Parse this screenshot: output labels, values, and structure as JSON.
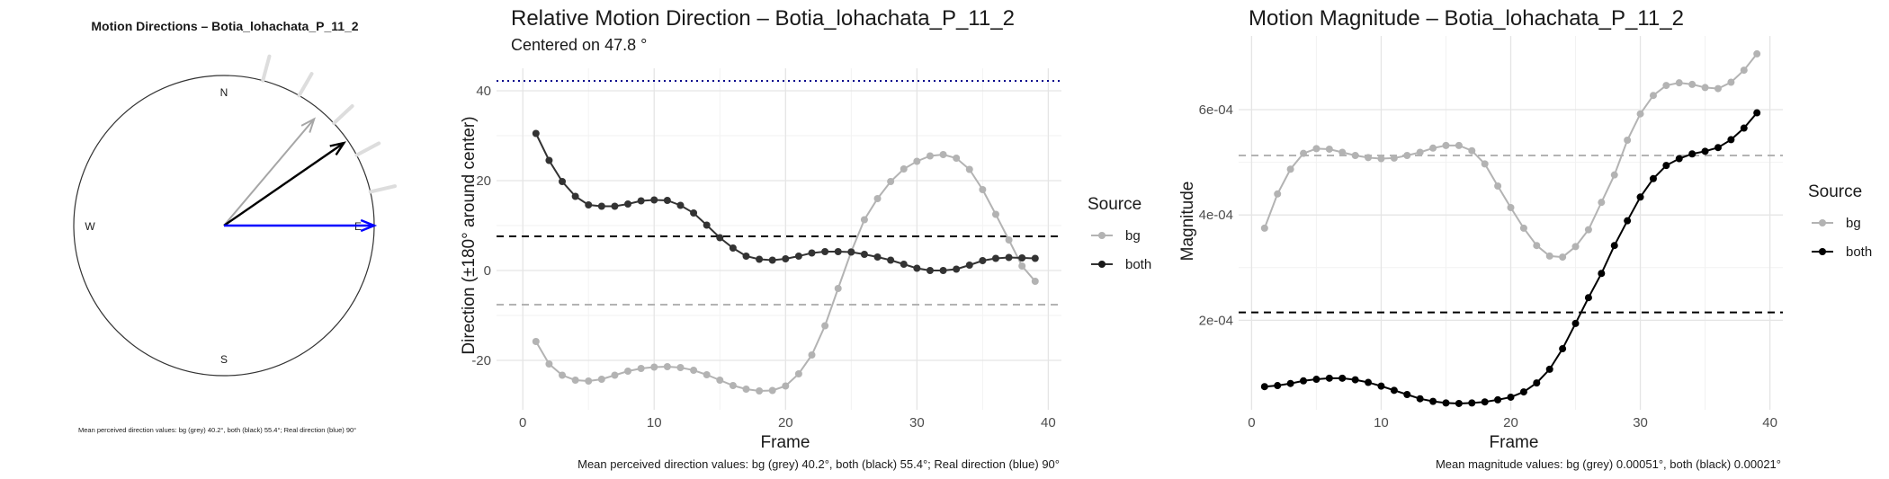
{
  "chart_data": [
    {
      "type": "polar-arrows",
      "title": "Motion Directions – Botia_lohachata_P_11_2",
      "compass": [
        "N",
        "E",
        "S",
        "W"
      ],
      "series": [
        {
          "name": "bg",
          "color": "#a6a6a6",
          "direction_deg": 40.2
        },
        {
          "name": "both",
          "color": "#000000",
          "direction_deg": 55.4
        },
        {
          "name": "real",
          "color": "#0000ff",
          "direction_deg": 90
        }
      ],
      "rays_deg": [
        15,
        30,
        47,
        62,
        77
      ],
      "caption": "Mean perceived direction values: bg (grey) 40.2°, both (black) 55.4°; Real direction (blue) 90°"
    },
    {
      "type": "line",
      "title": "Relative Motion Direction – Botia_lohachata_P_11_2",
      "subtitle": "Centered on  47.8 °",
      "xlabel": "Frame",
      "ylabel": "Direction (±180° around center)",
      "xlim": [
        -2,
        41
      ],
      "ylim": [
        -31,
        45
      ],
      "xticks": [
        0,
        10,
        20,
        30,
        40
      ],
      "yticks": [
        -20,
        0,
        20,
        40
      ],
      "legend_title": "Source",
      "hlines": [
        {
          "y": 42.2,
          "style": "dotted",
          "color": "#00008b"
        },
        {
          "y": 7.6,
          "style": "dashed",
          "color": "#000000"
        },
        {
          "y": -7.6,
          "style": "dashed",
          "color": "#b3b3b3"
        }
      ],
      "x": [
        1,
        2,
        3,
        4,
        5,
        6,
        7,
        8,
        9,
        10,
        11,
        12,
        13,
        14,
        15,
        16,
        17,
        18,
        19,
        20,
        21,
        22,
        23,
        24,
        25,
        26,
        27,
        28,
        29,
        30,
        31,
        32,
        33,
        34,
        35,
        36,
        37,
        38,
        39
      ],
      "series": [
        {
          "name": "bg",
          "color": "#b3b3b3",
          "values": [
            -15.8,
            -20.8,
            -23.3,
            -24.4,
            -24.6,
            -24.2,
            -23.3,
            -22.4,
            -21.8,
            -21.5,
            -21.4,
            -21.6,
            -22.2,
            -23.2,
            -24.4,
            -25.6,
            -26.4,
            -26.8,
            -26.7,
            -25.7,
            -23.0,
            -18.8,
            -12.3,
            -4.0,
            4.2,
            11.3,
            16.0,
            19.8,
            22.6,
            24.3,
            25.5,
            25.8,
            25.0,
            22.5,
            18.0,
            12.5,
            6.8,
            1.0,
            -2.4
          ]
        },
        {
          "name": "both",
          "color": "#000000",
          "values": [
            30.5,
            24.5,
            19.8,
            16.5,
            14.6,
            14.3,
            14.3,
            14.8,
            15.5,
            15.7,
            15.6,
            14.5,
            12.8,
            10.1,
            7.3,
            5.0,
            3.2,
            2.5,
            2.3,
            2.6,
            3.2,
            3.9,
            4.2,
            4.2,
            4.1,
            3.6,
            3.0,
            2.3,
            1.4,
            0.5,
            0.0,
            0.0,
            0.3,
            1.2,
            2.2,
            2.7,
            2.9,
            2.8,
            2.7
          ]
        }
      ],
      "caption": "Mean perceived direction values: bg (grey) 40.2°, both (black) 55.4°; Real direction (blue) 90°"
    },
    {
      "type": "line",
      "title": "Motion Magnitude – Botia_lohachata_P_11_2",
      "xlabel": "Frame",
      "ylabel": "Magnitude",
      "xlim": [
        -1,
        41
      ],
      "ylim": [
        3e-05,
        0.00074
      ],
      "xticks": [
        0,
        10,
        20,
        30,
        40
      ],
      "yticks": [
        0.0002,
        0.0004,
        0.0006
      ],
      "ytick_labels": [
        "2e-04",
        "4e-04",
        "6e-04"
      ],
      "legend_title": "Source",
      "hlines": [
        {
          "y": 0.000513,
          "style": "dashed",
          "color": "#b3b3b3"
        },
        {
          "y": 0.000215,
          "style": "dashed",
          "color": "#000000"
        }
      ],
      "x": [
        1,
        2,
        3,
        4,
        5,
        6,
        7,
        8,
        9,
        10,
        11,
        12,
        13,
        14,
        15,
        16,
        17,
        18,
        19,
        20,
        21,
        22,
        23,
        24,
        25,
        26,
        27,
        28,
        29,
        30,
        31,
        32,
        33,
        34,
        35,
        36,
        37,
        38,
        39
      ],
      "series": [
        {
          "name": "bg",
          "color": "#b3b3b3",
          "values": [
            0.000375,
            0.00044,
            0.000487,
            0.000517,
            0.000526,
            0.000525,
            0.000519,
            0.000513,
            0.000509,
            0.000507,
            0.000508,
            0.000513,
            0.000519,
            0.000527,
            0.000532,
            0.000532,
            0.000522,
            0.000497,
            0.000455,
            0.000414,
            0.000375,
            0.000342,
            0.000322,
            0.00032,
            0.00034,
            0.000372,
            0.000424,
            0.000476,
            0.000542,
            0.000592,
            0.000627,
            0.000646,
            0.000651,
            0.000648,
            0.000642,
            0.00064,
            0.000652,
            0.000675,
            0.000706
          ]
        },
        {
          "name": "both",
          "color": "#000000",
          "values": [
            7.4e-05,
            7.6e-05,
            8e-05,
            8.5e-05,
            8.8e-05,
            9e-05,
            9e-05,
            8.7e-05,
            8.2e-05,
            7.5e-05,
            6.7e-05,
            5.9e-05,
            5.1e-05,
            4.6e-05,
            4.3e-05,
            4.2e-05,
            4.3e-05,
            4.5e-05,
            4.9e-05,
            5.4e-05,
            6.4e-05,
            8.1e-05,
            0.000107,
            0.000146,
            0.000194,
            0.000243,
            0.000289,
            0.000342,
            0.000389,
            0.000434,
            0.000469,
            0.000494,
            0.000507,
            0.000516,
            0.000521,
            0.000528,
            0.000543,
            0.000565,
            0.000594
          ]
        }
      ],
      "caption": "Mean magnitude values: bg (grey) 0.00051°, both (black) 0.00021°"
    }
  ]
}
